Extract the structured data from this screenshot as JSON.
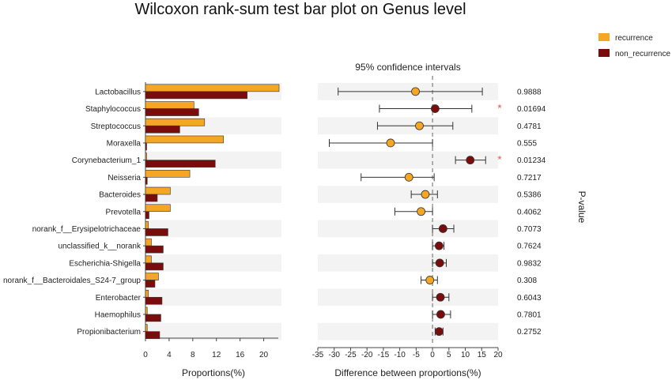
{
  "chart_data": {
    "type": "bar",
    "title": "Wilcoxon rank-sum test bar plot on Genus level",
    "left_panel": {
      "xlabel": "Proportions(%)",
      "xlim": [
        0,
        23
      ],
      "ticks": [
        0,
        4,
        8,
        12,
        16,
        20
      ]
    },
    "right_panel": {
      "subtitle": "95% confidence intervals",
      "xlabel": "Difference between proportions(%)",
      "xlim": [
        -35,
        20
      ],
      "ticks": [
        -35,
        -30,
        -25,
        -20,
        -15,
        -10,
        -5,
        0,
        5,
        10,
        15,
        20
      ]
    },
    "pvalue_label": "P-value",
    "legend": [
      {
        "name": "recurrence",
        "color": "#f5a623"
      },
      {
        "name": "non_recurrence",
        "color": "#7b0c0c"
      }
    ],
    "categories": [
      "Lactobacillus",
      "Staphylococcus",
      "Streptococcus",
      "Moraxella",
      "Corynebacterium_1",
      "Neisseria",
      "Bacteroides",
      "Prevotella",
      "norank_f__Erysipelotrichaceae",
      "unclassified_k__norank",
      "Escherichia-Shigella",
      "norank_f__Bacteroidales_S24-7_group",
      "Enterobacter",
      "Haemophilus",
      "Propionibacterium"
    ],
    "series": [
      {
        "name": "recurrence",
        "values": [
          22.6,
          8.2,
          10.0,
          13.2,
          0.2,
          7.5,
          4.2,
          4.2,
          0.5,
          1.0,
          1.0,
          2.2,
          0.5,
          0.3,
          0.3
        ]
      },
      {
        "name": "non_recurrence",
        "values": [
          17.2,
          9.0,
          5.8,
          0.2,
          11.8,
          0.3,
          2.0,
          0.6,
          3.8,
          3.0,
          3.0,
          1.6,
          2.8,
          2.6,
          2.4
        ]
      }
    ],
    "ci": [
      {
        "diff": -5.2,
        "low": -28.8,
        "high": 15.2,
        "group": "recurrence"
      },
      {
        "diff": 0.8,
        "low": -16.2,
        "high": 12.0,
        "group": "non_recurrence"
      },
      {
        "diff": -4.0,
        "low": -16.8,
        "high": 6.2,
        "group": "recurrence"
      },
      {
        "diff": -12.8,
        "low": -31.5,
        "high": 0.0,
        "group": "recurrence"
      },
      {
        "diff": 11.5,
        "low": 7.0,
        "high": 16.2,
        "group": "non_recurrence"
      },
      {
        "diff": -7.2,
        "low": -21.8,
        "high": 0.5,
        "group": "recurrence"
      },
      {
        "diff": -2.2,
        "low": -6.5,
        "high": 1.5,
        "group": "recurrence"
      },
      {
        "diff": -3.5,
        "low": -11.5,
        "high": 0.0,
        "group": "recurrence"
      },
      {
        "diff": 3.2,
        "low": 0.0,
        "high": 6.5,
        "group": "non_recurrence"
      },
      {
        "diff": 2.0,
        "low": 0.0,
        "high": 3.5,
        "group": "non_recurrence"
      },
      {
        "diff": 2.2,
        "low": 0.0,
        "high": 4.2,
        "group": "non_recurrence"
      },
      {
        "diff": -0.8,
        "low": -3.5,
        "high": 1.5,
        "group": "recurrence"
      },
      {
        "diff": 2.4,
        "low": 0.0,
        "high": 5.0,
        "group": "non_recurrence"
      },
      {
        "diff": 2.5,
        "low": 0.0,
        "high": 5.5,
        "group": "non_recurrence"
      },
      {
        "diff": 2.0,
        "low": 0.8,
        "high": 3.2,
        "group": "non_recurrence"
      }
    ],
    "pvalues": [
      "0.9888",
      "0.01694",
      "0.4781",
      "0.555",
      "0.01234",
      "0.7217",
      "0.5386",
      "0.4062",
      "0.7073",
      "0.7624",
      "0.9832",
      "0.308",
      "0.6043",
      "0.7801",
      "0.2752"
    ],
    "significant": [
      false,
      true,
      false,
      false,
      true,
      false,
      false,
      false,
      false,
      false,
      false,
      false,
      false,
      false,
      false
    ],
    "significance_marker": "*",
    "grid": false,
    "legend_position": "top-right"
  }
}
